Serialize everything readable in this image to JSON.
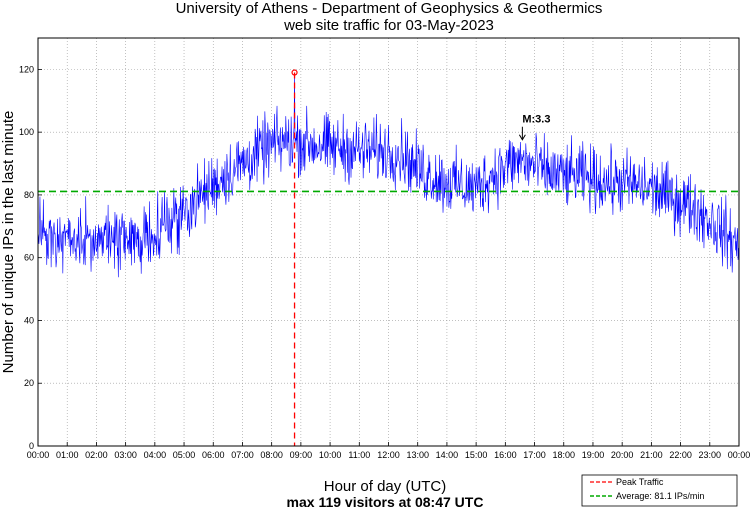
{
  "chart_data": {
    "type": "line",
    "title": "University of Athens - Department of Geophysics & Geothermics",
    "subtitle": "web site traffic for 03-May-2023",
    "xlabel": "Hour of day (UTC)",
    "ylabel": "Number of unique IPs in the last minute",
    "footnote": "max 119 visitors at 08:47 UTC",
    "xlim": [
      "00:00",
      "24:00"
    ],
    "ylim": [
      0,
      130
    ],
    "yticks": [
      0,
      20,
      40,
      60,
      80,
      100,
      120
    ],
    "xtick_labels": [
      "00:00",
      "01:00",
      "02:00",
      "03:00",
      "04:00",
      "05:00",
      "06:00",
      "07:00",
      "08:00",
      "09:00",
      "10:00",
      "11:00",
      "12:00",
      "13:00",
      "14:00",
      "15:00",
      "16:00",
      "17:00",
      "18:00",
      "19:00",
      "20:00",
      "21:00",
      "22:00",
      "23:00",
      "00:00"
    ],
    "grid": true,
    "legend_position": "bottom-right",
    "series": [
      {
        "name": "",
        "color": "#0000ff",
        "x_hours": [
          0,
          0.5,
          1,
          1.5,
          2,
          2.5,
          3,
          3.5,
          4,
          4.5,
          5,
          5.5,
          6,
          6.5,
          7,
          7.5,
          8,
          8.5,
          9,
          9.5,
          10,
          10.5,
          11,
          11.5,
          12,
          12.5,
          13,
          13.5,
          14,
          14.5,
          15,
          15.5,
          16,
          16.5,
          17,
          17.5,
          18,
          18.5,
          19,
          19.5,
          20,
          20.5,
          21,
          21.5,
          22,
          22.5,
          23,
          23.5,
          24
        ],
        "y_mean": [
          67,
          66,
          65,
          65,
          66,
          66,
          64,
          66,
          69,
          72,
          75,
          79,
          83,
          87,
          90,
          93,
          96,
          97,
          97,
          96,
          95,
          95,
          94,
          94,
          94,
          93,
          88,
          86,
          84,
          83,
          82,
          86,
          89,
          91,
          89,
          87,
          86,
          86,
          85,
          84,
          84,
          83,
          82,
          80,
          78,
          76,
          72,
          68,
          63
        ]
      },
      {
        "name": "Peak Traffic",
        "color": "#ff0000",
        "style": "dashed-vertical",
        "x": "08:47",
        "y": 119
      },
      {
        "name": "Average: 81.1 IPs/min",
        "color": "#00aa00",
        "style": "dashed-horizontal",
        "y": 81.1
      }
    ],
    "annotations": [
      {
        "text": "M:3.3",
        "x": "16:35",
        "y": 103
      }
    ],
    "legend": [
      "Peak Traffic",
      "Average: 81.1 IPs/min"
    ]
  }
}
